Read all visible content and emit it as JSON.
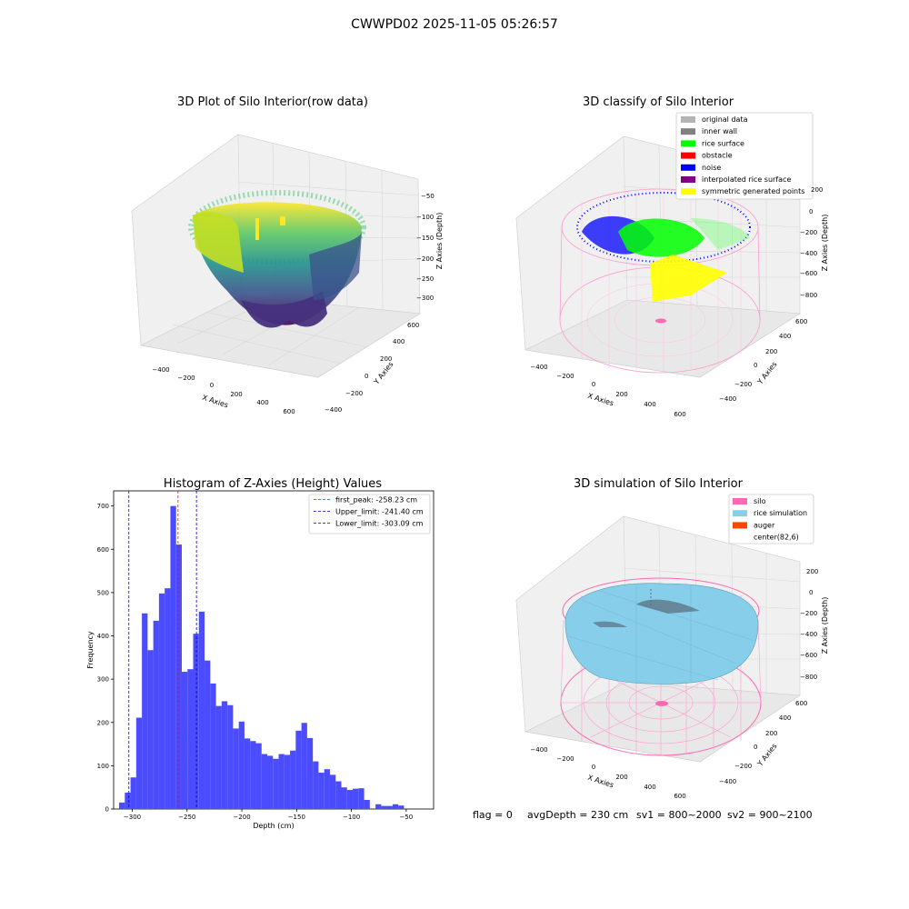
{
  "suptitle": "CWWPD02 2025-11-05 05:26:57",
  "footer": {
    "flag": "flag = 0",
    "avg": "avgDepth = 230 cm",
    "sv1": "sv1 = 800~2000",
    "sv2": "sv2 = 900~2100"
  },
  "colors": {
    "hist_bar": "#4b4bff",
    "first_peak": "#ff0000",
    "limits": "#0000cc",
    "pane": "#f2f2f2",
    "silo": "#ff69b4",
    "rice_sim": "#87ceeb",
    "auger": "#ff4500"
  },
  "chart_data": [
    {
      "type": "scatter3d",
      "title": "3D Plot of Silo Interior(row data)",
      "xlabel": "X Axies",
      "ylabel": "Y Axies",
      "zlabel": "Z Axies (Depth)",
      "xticks": [
        "−400",
        "−200",
        "0",
        "200",
        "400",
        "600"
      ],
      "yticks": [
        "−400",
        "−200",
        "0",
        "200",
        "400",
        "600"
      ],
      "zticks": [
        "−50",
        "−100",
        "−150",
        "−200",
        "−250",
        "−300"
      ],
      "colormap": "viridis"
    },
    {
      "type": "scatter3d",
      "title": "3D classify of Silo Interior",
      "xlabel": "X Axies",
      "ylabel": "Y Axies",
      "zlabel": "Z Axies (Depth)",
      "xticks": [
        "−400",
        "−200",
        "0",
        "200",
        "400",
        "600"
      ],
      "yticks": [
        "−400",
        "−200",
        "0",
        "200",
        "400",
        "600"
      ],
      "zticks": [
        "200",
        "0",
        "−200",
        "−400",
        "−600",
        "−800"
      ],
      "legend": {
        "placement": "top-right",
        "entries": [
          {
            "label": "original data",
            "color": "#b3b3b3"
          },
          {
            "label": "inner wall",
            "color": "#808080"
          },
          {
            "label": "rice surface",
            "color": "#00ff00"
          },
          {
            "label": "obstacle",
            "color": "#ff0000"
          },
          {
            "label": "noise",
            "color": "#0000ff"
          },
          {
            "label": "interpolated rice surface",
            "color": "#800080"
          },
          {
            "label": "symmetric generated points",
            "color": "#ffff00"
          }
        ]
      }
    },
    {
      "type": "bar",
      "title": "Histogram of Z-Axies (Height) Values",
      "xlabel": "Depth (cm)",
      "ylabel": "Frequency",
      "xlim": [
        -317,
        -25
      ],
      "ylim": [
        0,
        735
      ],
      "bin_width": 5.2,
      "bin_start": -312,
      "values": [
        15,
        38,
        73,
        211,
        452,
        367,
        435,
        498,
        510,
        700,
        611,
        317,
        323,
        405,
        456,
        343,
        290,
        238,
        249,
        240,
        186,
        202,
        163,
        157,
        152,
        127,
        123,
        116,
        127,
        125,
        135,
        181,
        199,
        164,
        110,
        84,
        92,
        79,
        64,
        50,
        44,
        47,
        48,
        21,
        0,
        11,
        7,
        7,
        11,
        8
      ],
      "xticks": [
        -300,
        -250,
        -200,
        -150,
        -100,
        -50
      ],
      "xtick_labels": [
        "−300",
        "−250",
        "−200",
        "−150",
        "−100",
        "−50"
      ],
      "yticks": [
        0,
        100,
        200,
        300,
        400,
        500,
        600,
        700
      ],
      "vlines": [
        {
          "x": -258.23,
          "label": "first_peak: -258.23 cm",
          "color": "#ff0000"
        },
        {
          "x": -241.4,
          "label": "Upper_limit: -241.40 cm",
          "color": "#0000cc"
        },
        {
          "x": -303.09,
          "label": "Lower_limit: -303.09 cm",
          "color": "#0000cc"
        }
      ],
      "legend_placement": "top-right"
    },
    {
      "type": "surface3d",
      "title": "3D simulation of Silo Interior",
      "xlabel": "X Axies",
      "ylabel": "Y Axies",
      "zlabel": "Z Axies (Depth)",
      "xticks": [
        "−400",
        "−200",
        "0",
        "200",
        "400",
        "600"
      ],
      "yticks": [
        "−400",
        "−200",
        "0",
        "200",
        "400",
        "600"
      ],
      "zticks": [
        "200",
        "0",
        "−200",
        "−400",
        "−600",
        "−800"
      ],
      "legend": {
        "placement": "top-right",
        "entries": [
          {
            "label": "silo",
            "color": "#ff69b4"
          },
          {
            "label": "rice simulation",
            "color": "#87ceeb"
          },
          {
            "label": "auger",
            "color": "#ff4500"
          },
          {
            "label": "center(82,6)",
            "color": null
          }
        ]
      }
    }
  ]
}
